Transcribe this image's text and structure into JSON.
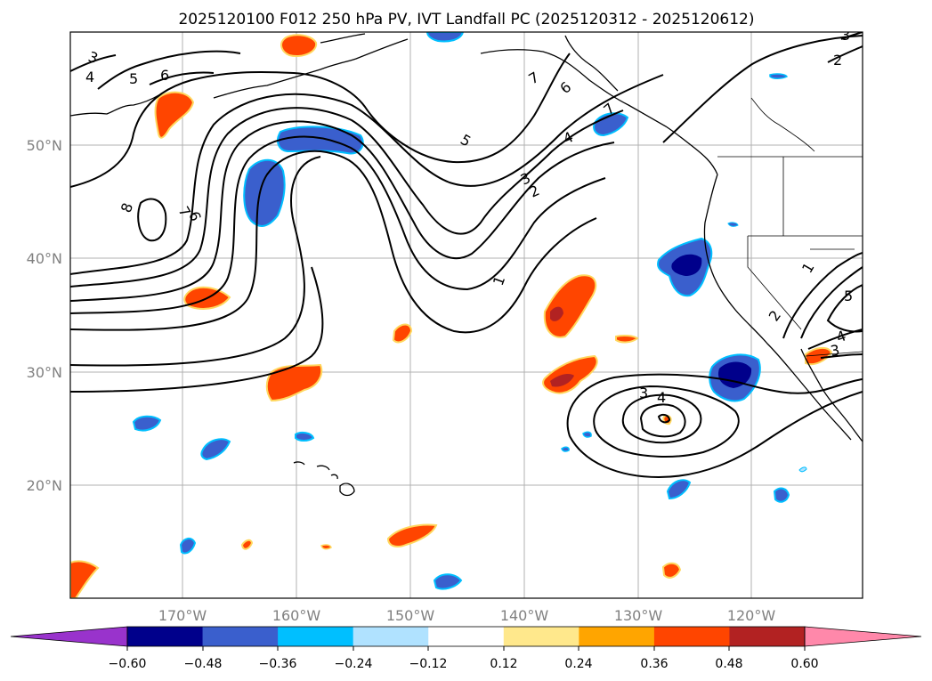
{
  "title": "2025120100 F012 250 hPa PV, IVT Landfall PC (2025120312 - 2025120612)",
  "lat_ticks": [
    {
      "value": 50,
      "label": "50°N"
    },
    {
      "value": 40,
      "label": "40°N"
    },
    {
      "value": 30,
      "label": "30°N"
    },
    {
      "value": 20,
      "label": "20°N"
    }
  ],
  "lon_ticks": [
    {
      "value": -170,
      "label": "170°W"
    },
    {
      "value": -160,
      "label": "160°W"
    },
    {
      "value": -150,
      "label": "150°W"
    },
    {
      "value": -140,
      "label": "140°W"
    },
    {
      "value": -130,
      "label": "130°W"
    },
    {
      "value": -120,
      "label": "120°W"
    }
  ],
  "colorbar": {
    "levels": [
      "−0.60",
      "−0.48",
      "−0.36",
      "−0.24",
      "−0.12",
      "0.12",
      "0.24",
      "0.36",
      "0.48",
      "0.60"
    ],
    "under_color": "#9933cc",
    "over_color": "#ff88aa",
    "colors": [
      "#00008b",
      "#3a5fcd",
      "#00bfff",
      "#b0e2ff",
      "#ffffff",
      "#ffe88c",
      "#ffa500",
      "#ff4500",
      "#b22222"
    ]
  },
  "contour_labels": [
    {
      "text": "3",
      "role": "contour-label"
    },
    {
      "text": "4",
      "role": "contour-label"
    },
    {
      "text": "5",
      "role": "contour-label"
    },
    {
      "text": "6",
      "role": "contour-label"
    },
    {
      "text": "7",
      "role": "contour-label"
    },
    {
      "text": "8",
      "role": "contour-label"
    },
    {
      "text": "6",
      "role": "contour-label"
    },
    {
      "text": "7",
      "role": "contour-label"
    },
    {
      "text": "5",
      "role": "contour-label"
    },
    {
      "text": "4",
      "role": "contour-label"
    },
    {
      "text": "3",
      "role": "contour-label"
    },
    {
      "text": "2",
      "role": "contour-label"
    },
    {
      "text": "1",
      "role": "contour-label"
    },
    {
      "text": "7",
      "role": "contour-label"
    },
    {
      "text": "6",
      "role": "contour-label"
    },
    {
      "text": "3",
      "role": "contour-label"
    },
    {
      "text": "2",
      "role": "contour-label"
    },
    {
      "text": "1",
      "role": "contour-label"
    },
    {
      "text": "2",
      "role": "contour-label"
    },
    {
      "text": "5",
      "role": "contour-label"
    },
    {
      "text": "4",
      "role": "contour-label"
    },
    {
      "text": "3",
      "role": "contour-label"
    },
    {
      "text": "3",
      "role": "contour-label"
    },
    {
      "text": "4",
      "role": "contour-label"
    }
  ]
}
